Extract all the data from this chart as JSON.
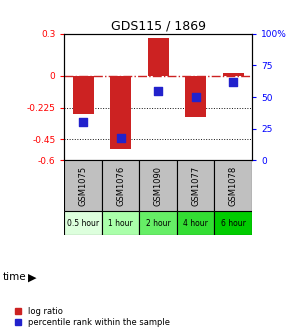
{
  "title": "GDS115 / 1869",
  "samples": [
    "GSM1075",
    "GSM1076",
    "GSM1090",
    "GSM1077",
    "GSM1078"
  ],
  "time_labels": [
    "0.5 hour",
    "1 hour",
    "2 hour",
    "4 hour",
    "6 hour"
  ],
  "time_colors": [
    "#ddffdd",
    "#aaffaa",
    "#66ee66",
    "#33dd33",
    "#00cc00"
  ],
  "log_ratios": [
    -0.27,
    -0.52,
    0.27,
    -0.29,
    0.02
  ],
  "percentile_ranks": [
    30,
    18,
    55,
    50,
    62
  ],
  "ylim_left": [
    -0.6,
    0.3
  ],
  "ylim_right": [
    0,
    100
  ],
  "bar_color": "#cc2222",
  "dot_color": "#2222cc",
  "hline_color": "#cc2222",
  "dotted_color": "#111111",
  "bg_color": "#ffffff",
  "plot_bg": "#ffffff",
  "bar_width": 0.55,
  "y_ticks_left": [
    0.3,
    0,
    -0.225,
    -0.45,
    -0.6
  ],
  "y_tick_labels_left": [
    "0.3",
    "0",
    "-0.225",
    "-0.45",
    "-0.6"
  ],
  "y_ticks_right": [
    100,
    75,
    50,
    25,
    0
  ],
  "y_tick_labels_right": [
    "100%",
    "75",
    "50",
    "25",
    "0"
  ],
  "dot_size": 30,
  "legend_labels": [
    "log ratio",
    "percentile rank within the sample"
  ]
}
